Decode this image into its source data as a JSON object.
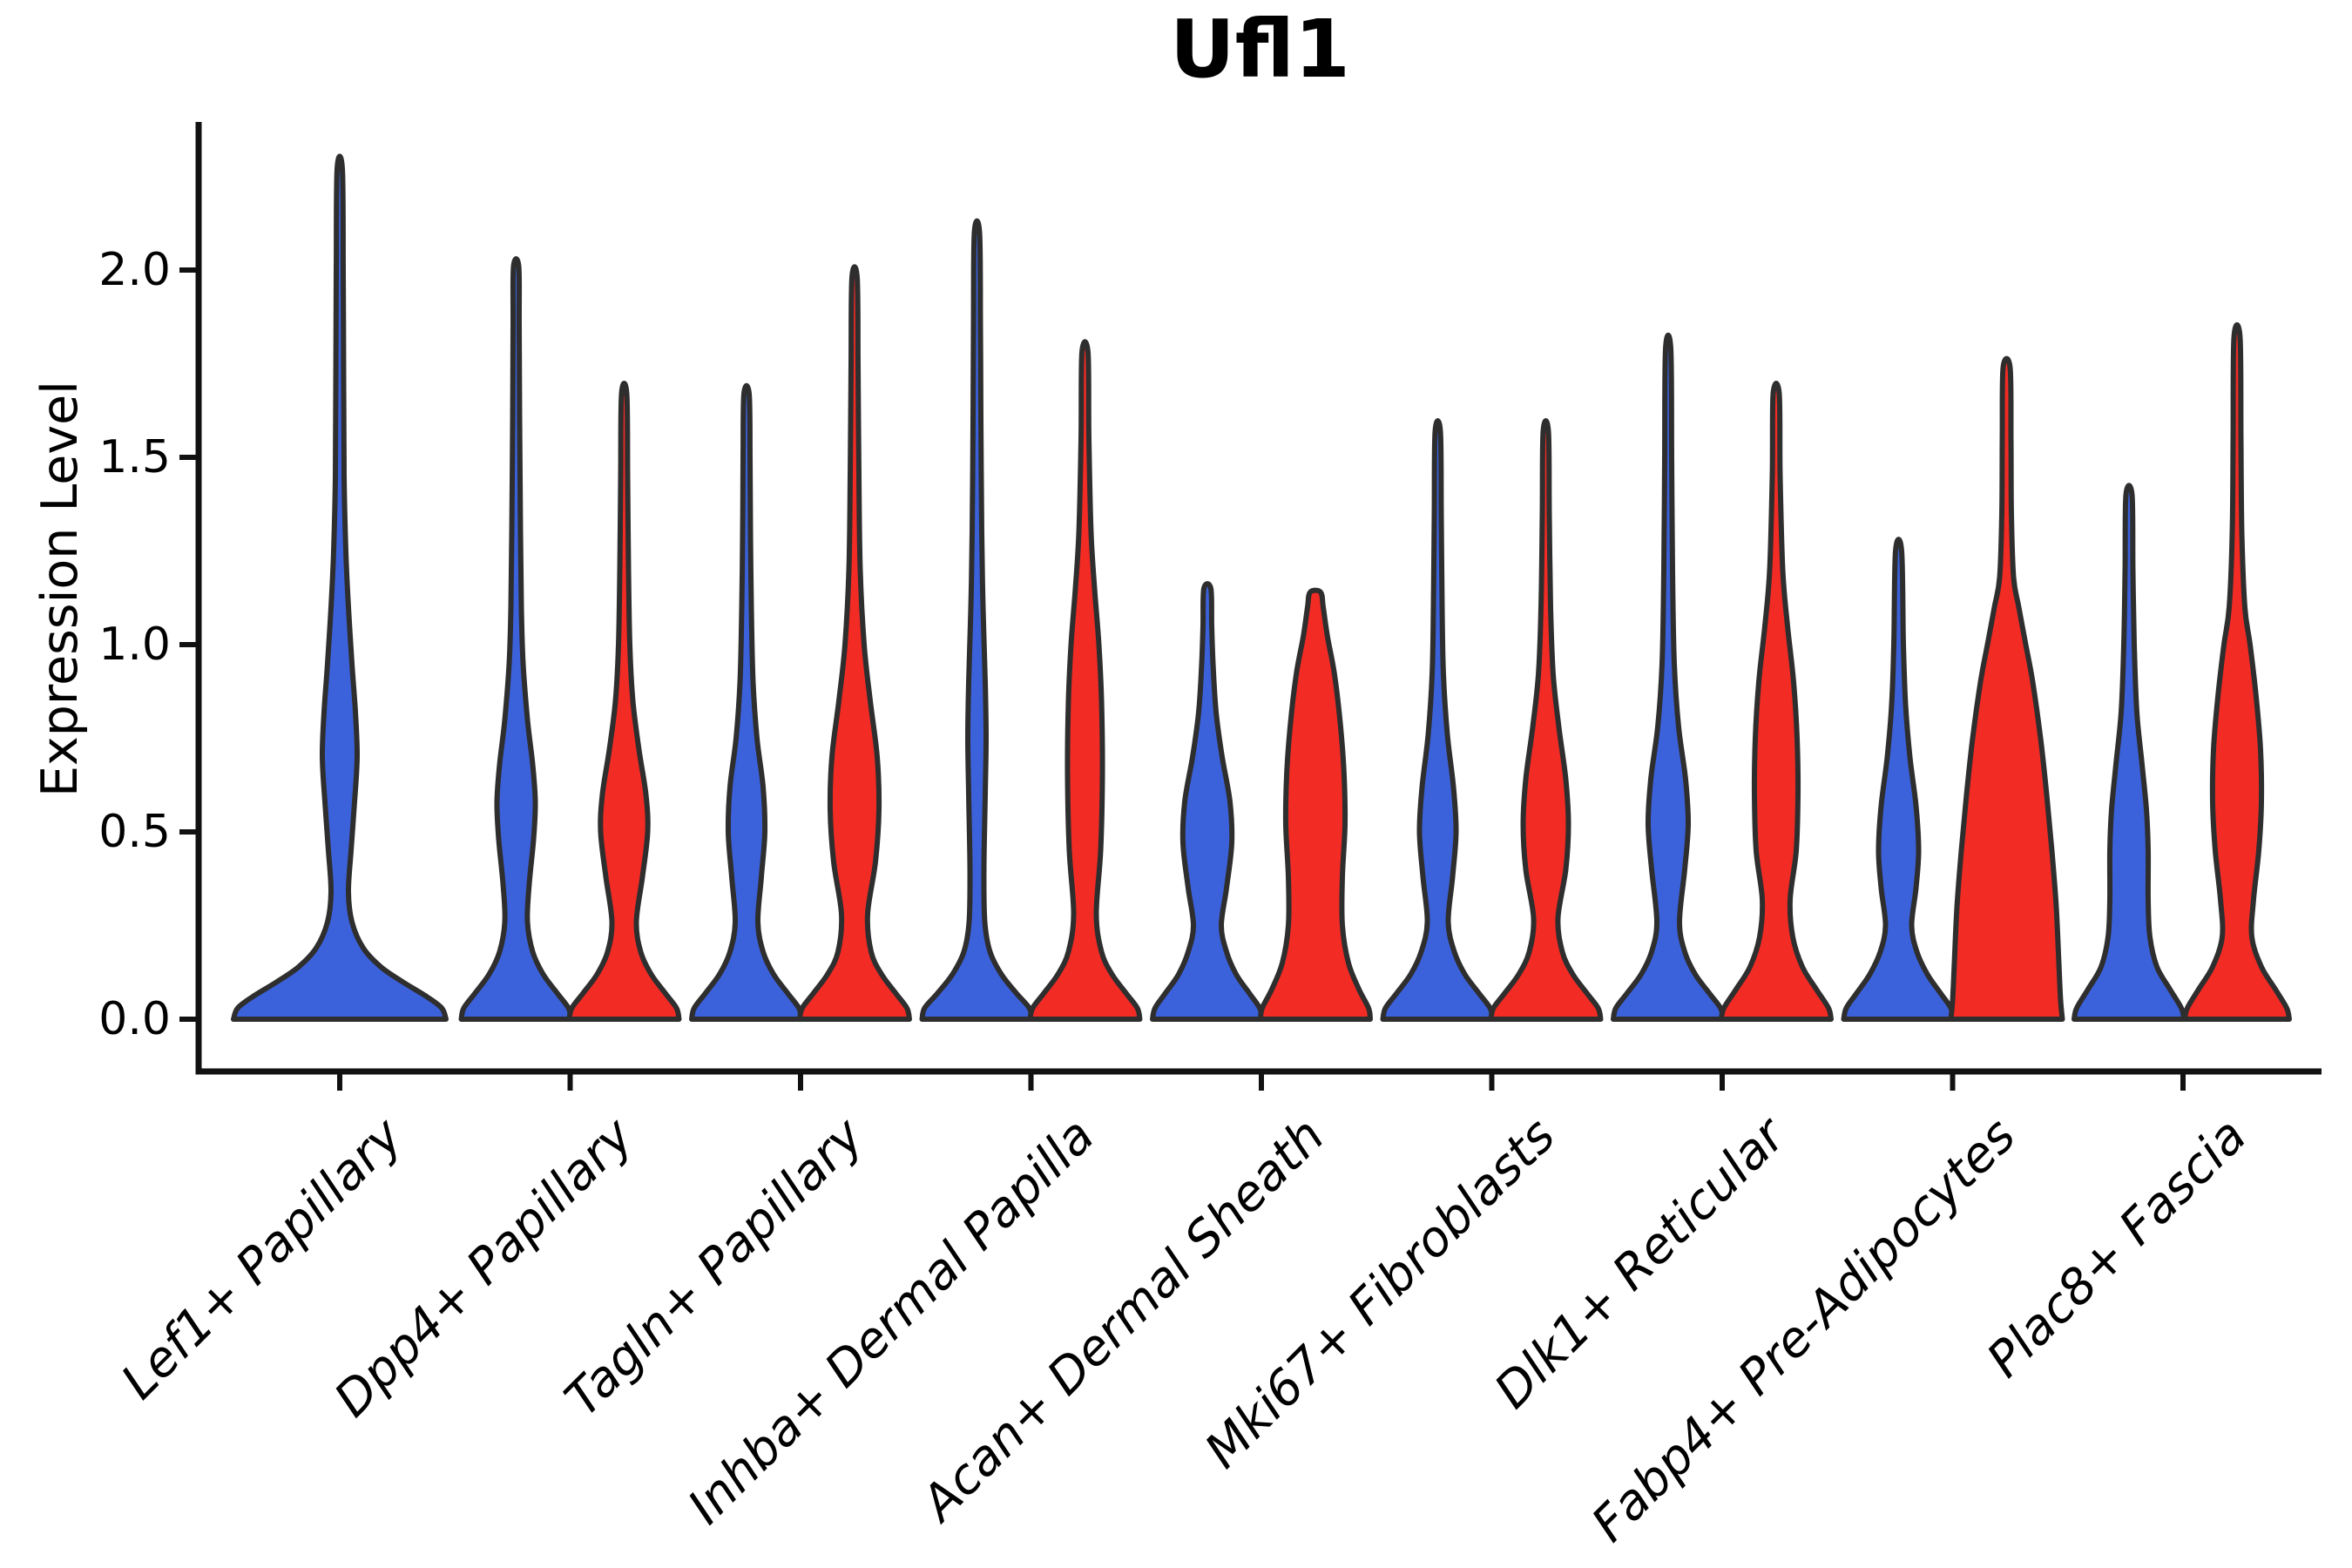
{
  "title": "Ufl1",
  "y_axis": {
    "label": "Expression Level",
    "ticks": [
      {
        "label": "2.0",
        "value": 2.0
      },
      {
        "label": "1.5",
        "value": 1.5
      },
      {
        "label": "1.0",
        "value": 1.0
      },
      {
        "label": "0.5",
        "value": 0.5
      },
      {
        "label": "0.0",
        "value": 0.0
      }
    ]
  },
  "x_axis": {
    "categories": [
      "Lef1+ Papillary",
      "Dpp4+ Papillary",
      "Tagln+ Papillary",
      "Inhba+ Dermal Papilla",
      "Acan+ Dermal Sheath",
      "Mki67+ Fibroblasts",
      "Dlk1+ Reticular",
      "Fabp4+ Pre-Adipocytes",
      "Plac8+ Fascia"
    ]
  },
  "colors": {
    "blue": "#3c62db",
    "red": "#f32b25",
    "violin_edge": "#2e2e2e",
    "axis": "#111111"
  },
  "chart_data": {
    "type": "violin",
    "title": "Ufl1",
    "xlabel": "",
    "ylabel": "Expression Level",
    "ylim": [
      0,
      2.4
    ],
    "yticks": [
      0.0,
      0.5,
      1.0,
      1.5,
      2.0
    ],
    "grid": false,
    "legend": "none",
    "categories": [
      "Lef1+ Papillary",
      "Dpp4+ Papillary",
      "Tagln+ Papillary",
      "Inhba+ Dermal Papilla",
      "Acan+ Dermal Sheath",
      "Mki67+ Fibroblasts",
      "Dlk1+ Reticular",
      "Fabp4+ Pre-Adipocytes",
      "Plac8+ Fascia"
    ],
    "series": [
      {
        "name": "blue",
        "color": "#3c62db",
        "max_expression": [
          2.27,
          2.01,
          1.67,
          2.1,
          1.15,
          1.57,
          1.79,
          1.25,
          1.4
        ]
      },
      {
        "name": "red",
        "color": "#f32b25",
        "max_expression": [
          null,
          1.67,
          1.98,
          1.78,
          1.14,
          1.57,
          1.67,
          1.74,
          1.82
        ]
      }
    ],
    "violins": [
      {
        "category": "Lef1+ Papillary",
        "group": 0,
        "series": "blue",
        "position": "center",
        "max": 2.27,
        "profile": [
          [
            0,
            122
          ],
          [
            0.03,
            117
          ],
          [
            0.06,
            100
          ],
          [
            0.1,
            72
          ],
          [
            0.14,
            47
          ],
          [
            0.19,
            27
          ],
          [
            0.26,
            14
          ],
          [
            0.34,
            10
          ],
          [
            0.45,
            13
          ],
          [
            0.58,
            17
          ],
          [
            0.7,
            20
          ],
          [
            0.82,
            18
          ],
          [
            0.95,
            14
          ],
          [
            1.1,
            10
          ],
          [
            1.25,
            7
          ],
          [
            1.45,
            5
          ],
          [
            1.7,
            4.5
          ],
          [
            2.0,
            4
          ],
          [
            2.27,
            3
          ]
        ]
      },
      {
        "category": "Dpp4+ Papillary",
        "group": 1,
        "series": "blue",
        "position": "left",
        "max": 2.01,
        "profile": [
          [
            0,
            63
          ],
          [
            0.03,
            60
          ],
          [
            0.07,
            47
          ],
          [
            0.12,
            31
          ],
          [
            0.18,
            19
          ],
          [
            0.26,
            13
          ],
          [
            0.36,
            15
          ],
          [
            0.48,
            20
          ],
          [
            0.58,
            22
          ],
          [
            0.68,
            19
          ],
          [
            0.8,
            13
          ],
          [
            0.95,
            8
          ],
          [
            1.1,
            6
          ],
          [
            1.3,
            5
          ],
          [
            1.6,
            4
          ],
          [
            1.85,
            3.5
          ],
          [
            2.01,
            3
          ]
        ]
      },
      {
        "category": "Dpp4+ Papillary",
        "group": 1,
        "series": "red",
        "position": "right",
        "max": 1.67,
        "profile": [
          [
            0,
            63
          ],
          [
            0.03,
            60
          ],
          [
            0.07,
            47
          ],
          [
            0.12,
            31
          ],
          [
            0.18,
            19
          ],
          [
            0.26,
            14
          ],
          [
            0.38,
            21
          ],
          [
            0.5,
            27
          ],
          [
            0.6,
            25
          ],
          [
            0.72,
            17
          ],
          [
            0.85,
            10
          ],
          [
            1.0,
            6.5
          ],
          [
            1.2,
            5
          ],
          [
            1.45,
            4
          ],
          [
            1.67,
            3
          ]
        ]
      },
      {
        "category": "Tagln+ Papillary",
        "group": 2,
        "series": "blue",
        "position": "left",
        "max": 1.67,
        "profile": [
          [
            0,
            63
          ],
          [
            0.03,
            60
          ],
          [
            0.07,
            47
          ],
          [
            0.12,
            31
          ],
          [
            0.18,
            19
          ],
          [
            0.26,
            13
          ],
          [
            0.38,
            17
          ],
          [
            0.5,
            21
          ],
          [
            0.62,
            19
          ],
          [
            0.75,
            12
          ],
          [
            0.9,
            7.5
          ],
          [
            1.1,
            5.5
          ],
          [
            1.3,
            4.5
          ],
          [
            1.5,
            4
          ],
          [
            1.67,
            3
          ]
        ]
      },
      {
        "category": "Tagln+ Papillary",
        "group": 2,
        "series": "red",
        "position": "right",
        "max": 1.98,
        "profile": [
          [
            0,
            63
          ],
          [
            0.03,
            60
          ],
          [
            0.07,
            47
          ],
          [
            0.12,
            31
          ],
          [
            0.18,
            19
          ],
          [
            0.28,
            15
          ],
          [
            0.42,
            24
          ],
          [
            0.56,
            28
          ],
          [
            0.7,
            26
          ],
          [
            0.85,
            18
          ],
          [
            1.0,
            11
          ],
          [
            1.2,
            6.5
          ],
          [
            1.45,
            5
          ],
          [
            1.75,
            4
          ],
          [
            1.98,
            3
          ]
        ]
      },
      {
        "category": "Inhba+ Dermal Papilla",
        "group": 3,
        "series": "blue",
        "position": "left",
        "max": 2.1,
        "profile": [
          [
            0,
            63
          ],
          [
            0.03,
            60
          ],
          [
            0.07,
            45
          ],
          [
            0.12,
            28
          ],
          [
            0.18,
            15
          ],
          [
            0.26,
            9
          ],
          [
            0.4,
            8
          ],
          [
            0.6,
            9.5
          ],
          [
            0.75,
            10.5
          ],
          [
            0.9,
            9.5
          ],
          [
            1.1,
            7
          ],
          [
            1.3,
            5.5
          ],
          [
            1.6,
            4.5
          ],
          [
            1.85,
            4
          ],
          [
            2.1,
            3
          ]
        ]
      },
      {
        "category": "Inhba+ Dermal Papilla",
        "group": 3,
        "series": "red",
        "position": "right",
        "max": 1.78,
        "profile": [
          [
            0,
            63
          ],
          [
            0.03,
            60
          ],
          [
            0.07,
            47
          ],
          [
            0.12,
            31
          ],
          [
            0.18,
            19
          ],
          [
            0.28,
            13
          ],
          [
            0.45,
            18
          ],
          [
            0.65,
            20
          ],
          [
            0.85,
            19
          ],
          [
            1.0,
            16
          ],
          [
            1.15,
            11
          ],
          [
            1.3,
            7
          ],
          [
            1.55,
            4.5
          ],
          [
            1.78,
            3.5
          ]
        ]
      },
      {
        "category": "Acan+ Dermal Sheath",
        "group": 4,
        "series": "blue",
        "position": "left",
        "max": 1.15,
        "profile": [
          [
            0,
            63
          ],
          [
            0.03,
            60
          ],
          [
            0.07,
            48
          ],
          [
            0.12,
            33
          ],
          [
            0.18,
            22
          ],
          [
            0.25,
            16
          ],
          [
            0.35,
            22
          ],
          [
            0.47,
            28
          ],
          [
            0.58,
            26
          ],
          [
            0.7,
            17
          ],
          [
            0.82,
            10
          ],
          [
            0.95,
            6.5
          ],
          [
            1.05,
            5
          ],
          [
            1.15,
            4
          ]
        ]
      },
      {
        "category": "Acan+ Dermal Sheath",
        "group": 4,
        "series": "red",
        "position": "right",
        "max": 1.14,
        "profile": [
          [
            0,
            63
          ],
          [
            0.03,
            61
          ],
          [
            0.08,
            50
          ],
          [
            0.15,
            38
          ],
          [
            0.25,
            31
          ],
          [
            0.38,
            31
          ],
          [
            0.52,
            34
          ],
          [
            0.65,
            33
          ],
          [
            0.78,
            29
          ],
          [
            0.92,
            22
          ],
          [
            1.02,
            14
          ],
          [
            1.1,
            9
          ],
          [
            1.14,
            6
          ]
        ]
      },
      {
        "category": "Mki67+ Fibroblasts",
        "group": 5,
        "series": "blue",
        "position": "left",
        "max": 1.57,
        "profile": [
          [
            0,
            63
          ],
          [
            0.03,
            60
          ],
          [
            0.07,
            47
          ],
          [
            0.12,
            31
          ],
          [
            0.18,
            19
          ],
          [
            0.26,
            12
          ],
          [
            0.38,
            17
          ],
          [
            0.5,
            21
          ],
          [
            0.62,
            18
          ],
          [
            0.76,
            11
          ],
          [
            0.92,
            6.5
          ],
          [
            1.1,
            5
          ],
          [
            1.35,
            4
          ],
          [
            1.57,
            3
          ]
        ]
      },
      {
        "category": "Mki67+ Fibroblasts",
        "group": 5,
        "series": "red",
        "position": "right",
        "max": 1.57,
        "profile": [
          [
            0,
            63
          ],
          [
            0.03,
            60
          ],
          [
            0.07,
            47
          ],
          [
            0.12,
            31
          ],
          [
            0.18,
            19
          ],
          [
            0.27,
            14
          ],
          [
            0.4,
            23
          ],
          [
            0.52,
            26
          ],
          [
            0.64,
            23
          ],
          [
            0.78,
            15
          ],
          [
            0.92,
            8.5
          ],
          [
            1.1,
            5.5
          ],
          [
            1.35,
            4
          ],
          [
            1.57,
            3
          ]
        ]
      },
      {
        "category": "Dlk1+ Reticular",
        "group": 6,
        "series": "blue",
        "position": "left",
        "max": 1.79,
        "profile": [
          [
            0,
            63
          ],
          [
            0.03,
            60
          ],
          [
            0.07,
            47
          ],
          [
            0.12,
            31
          ],
          [
            0.18,
            19
          ],
          [
            0.26,
            13
          ],
          [
            0.4,
            19
          ],
          [
            0.52,
            23
          ],
          [
            0.64,
            20
          ],
          [
            0.78,
            12
          ],
          [
            0.95,
            7
          ],
          [
            1.2,
            5
          ],
          [
            1.5,
            4
          ],
          [
            1.79,
            3
          ]
        ]
      },
      {
        "category": "Dlk1+ Reticular",
        "group": 6,
        "series": "red",
        "position": "right",
        "max": 1.67,
        "profile": [
          [
            0,
            63
          ],
          [
            0.03,
            60
          ],
          [
            0.08,
            46
          ],
          [
            0.14,
            30
          ],
          [
            0.22,
            19
          ],
          [
            0.32,
            16
          ],
          [
            0.45,
            23
          ],
          [
            0.6,
            25
          ],
          [
            0.75,
            24
          ],
          [
            0.9,
            20
          ],
          [
            1.05,
            13
          ],
          [
            1.2,
            7.5
          ],
          [
            1.45,
            4.5
          ],
          [
            1.67,
            3.5
          ]
        ]
      },
      {
        "category": "Fabp4+ Pre-Adipocytes",
        "group": 7,
        "series": "blue",
        "position": "left",
        "max": 1.25,
        "profile": [
          [
            0,
            63
          ],
          [
            0.03,
            60
          ],
          [
            0.07,
            48
          ],
          [
            0.12,
            33
          ],
          [
            0.18,
            21
          ],
          [
            0.25,
            15
          ],
          [
            0.35,
            20
          ],
          [
            0.45,
            23
          ],
          [
            0.57,
            20
          ],
          [
            0.7,
            13
          ],
          [
            0.84,
            8
          ],
          [
            1.0,
            5.5
          ],
          [
            1.25,
            3.5
          ]
        ]
      },
      {
        "category": "Fabp4+ Pre-Adipocytes",
        "group": 7,
        "series": "red",
        "position": "right",
        "max": 1.74,
        "profile": [
          [
            0,
            64
          ],
          [
            0.05,
            62
          ],
          [
            0.15,
            60
          ],
          [
            0.3,
            57
          ],
          [
            0.45,
            52
          ],
          [
            0.6,
            46
          ],
          [
            0.75,
            39
          ],
          [
            0.9,
            30
          ],
          [
            1.0,
            22
          ],
          [
            1.1,
            14
          ],
          [
            1.18,
            8
          ],
          [
            1.35,
            5.5
          ],
          [
            1.55,
            5
          ],
          [
            1.74,
            4
          ]
        ]
      },
      {
        "category": "Plac8+ Fascia",
        "group": 8,
        "series": "blue",
        "position": "left",
        "max": 1.4,
        "profile": [
          [
            0,
            63
          ],
          [
            0.03,
            60
          ],
          [
            0.08,
            47
          ],
          [
            0.14,
            32
          ],
          [
            0.22,
            24
          ],
          [
            0.32,
            22
          ],
          [
            0.45,
            22
          ],
          [
            0.56,
            20
          ],
          [
            0.68,
            15
          ],
          [
            0.82,
            9
          ],
          [
            1.0,
            6
          ],
          [
            1.2,
            4.5
          ],
          [
            1.4,
            3.5
          ]
        ]
      },
      {
        "category": "Plac8+ Fascia",
        "group": 8,
        "series": "red",
        "position": "right",
        "max": 1.82,
        "profile": [
          [
            0,
            60
          ],
          [
            0.03,
            57
          ],
          [
            0.08,
            44
          ],
          [
            0.14,
            28
          ],
          [
            0.22,
            17
          ],
          [
            0.32,
            19
          ],
          [
            0.45,
            25
          ],
          [
            0.58,
            28
          ],
          [
            0.72,
            27
          ],
          [
            0.86,
            22
          ],
          [
            1.0,
            15
          ],
          [
            1.1,
            9
          ],
          [
            1.3,
            5.5
          ],
          [
            1.55,
            4.5
          ],
          [
            1.82,
            3.5
          ]
        ]
      }
    ]
  }
}
